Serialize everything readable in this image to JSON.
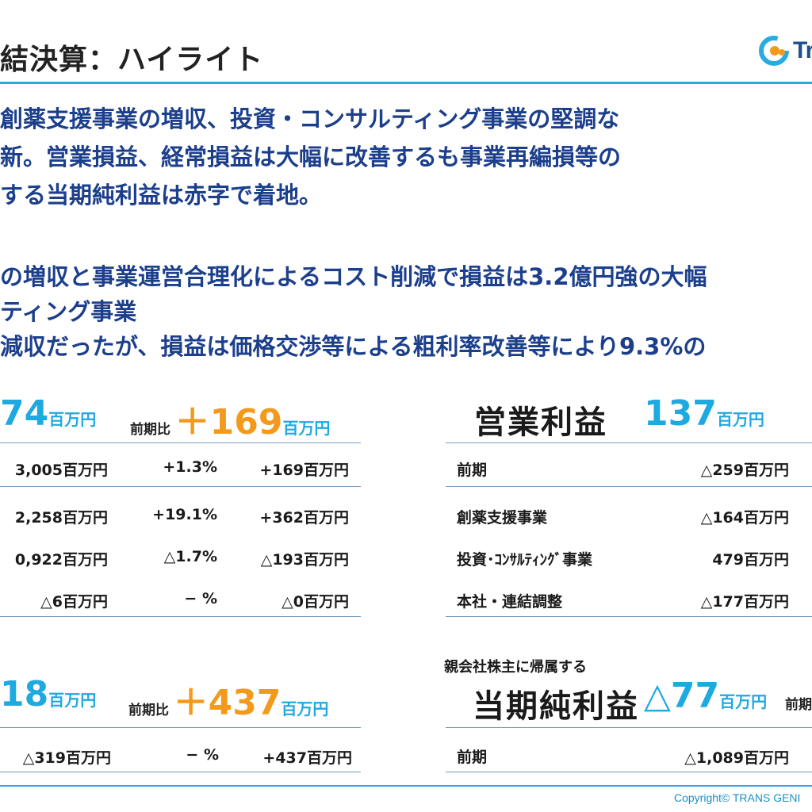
{
  "header": {
    "title": "結決算：ハイライト",
    "logo_text": "Tr"
  },
  "summary_lines": [
    "創薬支援事業の増収、投資・コンサルティング事業の堅調な",
    "新。営業損益、経常損益は大幅に改善するも事業再編損等の",
    "する当期純利益は赤字で着地。"
  ],
  "detail_lines": [
    "の増収と事業運営合理化によるコスト削減で損益は3.2億円強の大幅",
    "ティング事業",
    "減収だったが、損益は価格交渉等による粗利率改善等により9.3%の"
  ],
  "revenue": {
    "value": "74",
    "unit": "百万円",
    "diff_label": "前期比",
    "diff_value": "＋169",
    "diff_unit": "百万円",
    "rows": [
      {
        "amount": "3,005百万円",
        "rate": "+1.3%",
        "change": "+169百万円"
      },
      {
        "amount": "2,258百万円",
        "rate": "+19.1%",
        "change": "+362百万円"
      },
      {
        "amount": "0,922百万円",
        "rate": "△1.7%",
        "change": "△193百万円"
      },
      {
        "amount": "△6百万円",
        "rate": "− %",
        "change": "△0百万円"
      }
    ]
  },
  "operating_profit": {
    "label": "営業利益",
    "value": "137",
    "unit": "百万円",
    "rows": [
      {
        "label": "前期",
        "amount": "△259百万円"
      },
      {
        "label": "創薬支援事業",
        "amount": "△164百万円"
      },
      {
        "label": "投資･ｺﾝｻﾙﾃｨﾝｸﾞ事業",
        "amount": "479百万円"
      },
      {
        "label": "本社・連結調整",
        "amount": "△177百万円"
      }
    ]
  },
  "ordinary": {
    "value": "18",
    "unit": "百万円",
    "diff_label": "前期比",
    "diff_value": "＋437",
    "diff_unit": "百万円",
    "rows": [
      {
        "amount": "△319百万円",
        "rate": "− %",
        "change": "+437百万円"
      }
    ]
  },
  "net_income": {
    "parent_label": "親会社株主に帰属する",
    "label": "当期純利益",
    "value": "△77",
    "unit": "百万円",
    "diff_label": "前期",
    "rows": [
      {
        "label": "前期",
        "amount": "△1,089百万円"
      }
    ]
  },
  "footer": {
    "copyright": "Copyright© TRANS GENI"
  },
  "colors": {
    "accent_blue": "#1fa9e1",
    "rule_blue": "#29abe2",
    "text_navy": "#1c3f8c",
    "accent_orange": "#f39a1c"
  }
}
